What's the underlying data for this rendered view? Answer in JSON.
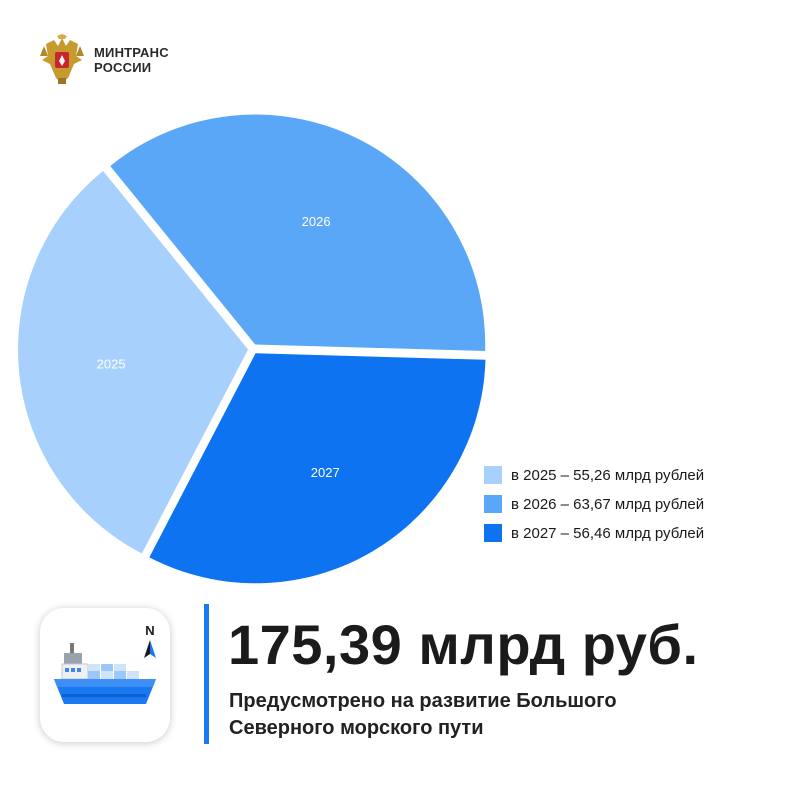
{
  "header": {
    "org_line1": "МИНТРАНС",
    "org_line2": "РОССИИ"
  },
  "chart_data": {
    "type": "pie",
    "title": "",
    "slices": [
      {
        "label": "2025",
        "value": 55.26,
        "color": "#a8d0fc",
        "legend": "в 2025 – 55,26 млрд рублей"
      },
      {
        "label": "2026",
        "value": 63.67,
        "color": "#5aa7f8",
        "legend": "в 2026 – 63,67 млрд рублей"
      },
      {
        "label": "2027",
        "value": 56.46,
        "color": "#0e73f0",
        "legend": "в 2027 – 56,46 млрд рублей"
      }
    ],
    "legend_position": "bottom-right"
  },
  "summary": {
    "total": "175,39 млрд руб.",
    "description_line1": "Предусмотрено на развитие Большого",
    "description_line2": "Северного морского пути"
  },
  "icon": {
    "name": "ship-icon",
    "compass_letter": "N"
  },
  "colors": {
    "accent": "#1a78f2",
    "text": "#1b1b1b"
  }
}
